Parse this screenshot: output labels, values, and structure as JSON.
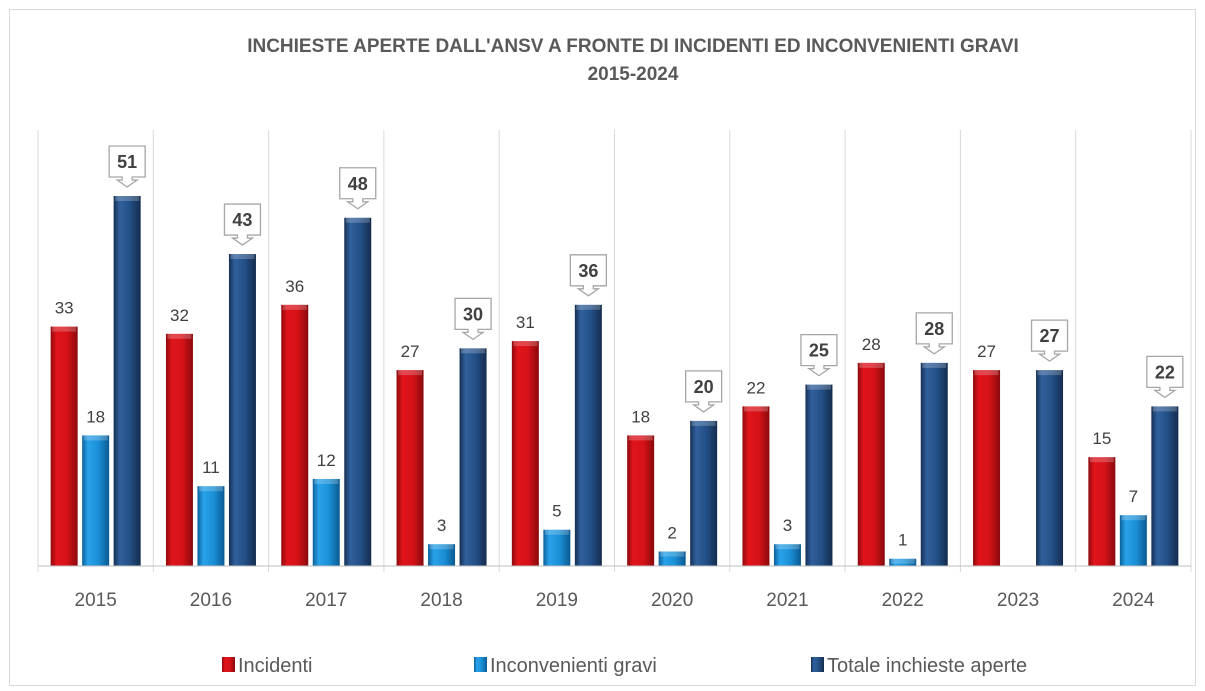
{
  "chart_data": {
    "type": "bar",
    "title_line1": "INCHIESTE APERTE DALL'ANSV A FRONTE DI INCIDENTI ED INCONVENIENTI GRAVI",
    "title_line2": "2015-2024",
    "categories": [
      "2015",
      "2016",
      "2017",
      "2018",
      "2019",
      "2020",
      "2021",
      "2022",
      "2023",
      "2024"
    ],
    "series": [
      {
        "name": "Incidenti",
        "values": [
          33,
          32,
          36,
          27,
          31,
          18,
          22,
          28,
          27,
          15
        ],
        "color": "#d8141b"
      },
      {
        "name": "Inconvenienti gravi",
        "values": [
          18,
          11,
          12,
          3,
          5,
          2,
          3,
          1,
          null,
          7
        ],
        "color": "#1b8fd6"
      },
      {
        "name": "Totale inchieste aperte",
        "values": [
          51,
          43,
          48,
          30,
          36,
          20,
          25,
          28,
          27,
          22
        ],
        "color": "#234f86"
      }
    ],
    "ylim": [
      0,
      55
    ],
    "grid": "vertical separators between categories",
    "legend": "bottom"
  }
}
